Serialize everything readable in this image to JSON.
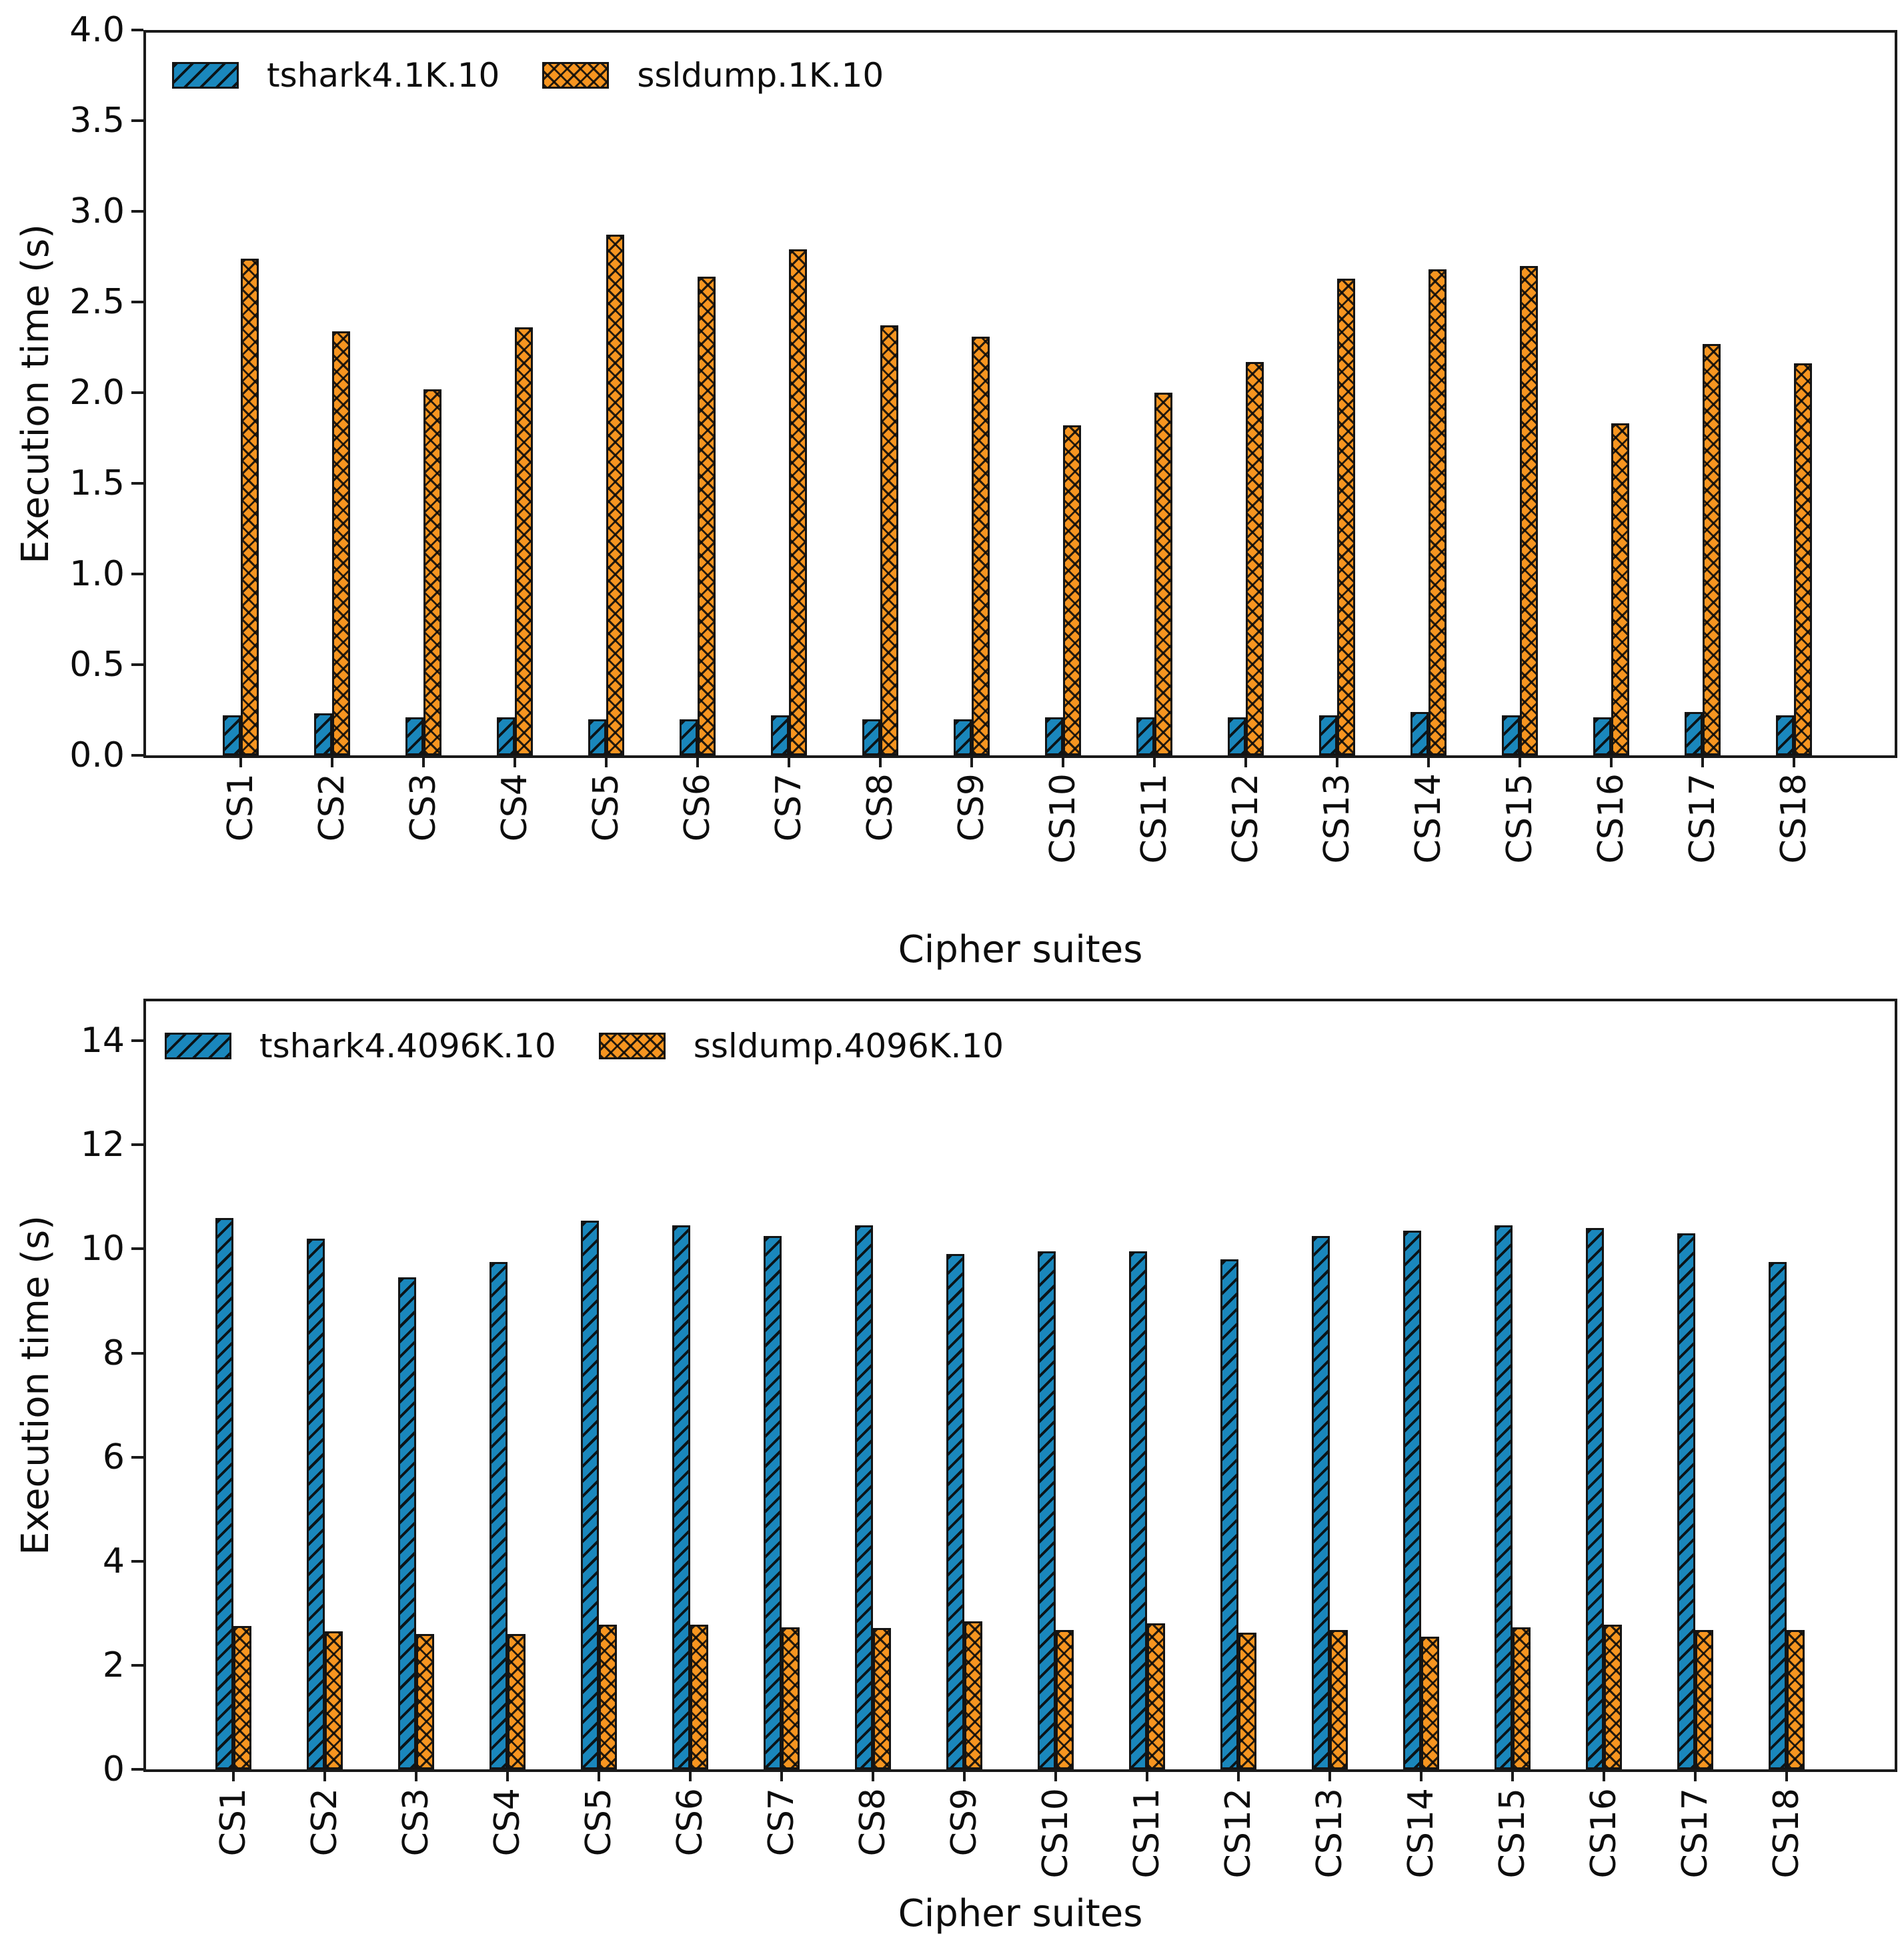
{
  "figure": {
    "background": "#ffffff",
    "edge_color": "#141414",
    "text_color": "#0d0d0d"
  },
  "chart_data": [
    {
      "type": "bar",
      "title": "",
      "xlabel": "Cipher suites",
      "ylabel": "Execution time (s)",
      "categories": [
        "CS1",
        "CS2",
        "CS3",
        "CS4",
        "CS5",
        "CS6",
        "CS7",
        "CS8",
        "CS9",
        "CS10",
        "CS11",
        "CS12",
        "CS13",
        "CS14",
        "CS15",
        "CS16",
        "CS17",
        "CS18"
      ],
      "series": [
        {
          "name": "tshark4.1K.10",
          "color": "#1a87bc",
          "hatch": "diagonal",
          "values": [
            0.22,
            0.23,
            0.21,
            0.21,
            0.2,
            0.2,
            0.22,
            0.2,
            0.2,
            0.21,
            0.21,
            0.21,
            0.22,
            0.24,
            0.22,
            0.21,
            0.24,
            0.22
          ]
        },
        {
          "name": "ssldump.1K.10",
          "color": "#f79520",
          "hatch": "cross",
          "values": [
            2.74,
            2.34,
            2.02,
            2.36,
            2.87,
            2.64,
            2.79,
            2.37,
            2.31,
            1.82,
            2.0,
            2.17,
            2.63,
            2.68,
            2.7,
            1.83,
            2.27,
            2.16
          ]
        }
      ],
      "ylim": [
        0,
        4.0
      ],
      "ytick_values": [
        0,
        0.5,
        1,
        1.5,
        2,
        2.5,
        3,
        3.5,
        4
      ],
      "yticklabels": [
        "0.0",
        "0.5",
        "1.0",
        "1.5",
        "2.0",
        "2.5",
        "3.0",
        "3.5",
        "4.0"
      ],
      "legend_position": "upper left",
      "grid": false
    },
    {
      "type": "bar",
      "title": "",
      "xlabel": "Cipher suites",
      "ylabel": "Execution time (s)",
      "categories": [
        "CS1",
        "CS2",
        "CS3",
        "CS4",
        "CS5",
        "CS6",
        "CS7",
        "CS8",
        "CS9",
        "CS10",
        "CS11",
        "CS12",
        "CS13",
        "CS14",
        "CS15",
        "CS16",
        "CS17",
        "CS18"
      ],
      "series": [
        {
          "name": "tshark4.4096K.10",
          "color": "#1a87bc",
          "hatch": "diagonal",
          "values": [
            10.6,
            10.2,
            9.45,
            9.75,
            10.55,
            10.45,
            10.25,
            10.45,
            9.9,
            9.95,
            9.95,
            9.8,
            10.25,
            10.35,
            10.45,
            10.4,
            10.3,
            9.75
          ]
        },
        {
          "name": "ssldump.4096K.10",
          "color": "#f79520",
          "hatch": "cross",
          "values": [
            2.75,
            2.65,
            2.6,
            2.6,
            2.78,
            2.78,
            2.73,
            2.72,
            2.85,
            2.68,
            2.8,
            2.62,
            2.68,
            2.55,
            2.73,
            2.78,
            2.68,
            2.68
          ]
        }
      ],
      "ylim": [
        0,
        14.8
      ],
      "ytick_values": [
        0,
        2,
        4,
        6,
        8,
        10,
        12,
        14
      ],
      "yticklabels": [
        "0",
        "2",
        "4",
        "6",
        "8",
        "10",
        "12",
        "14"
      ],
      "legend_position": "upper left",
      "grid": false
    }
  ]
}
